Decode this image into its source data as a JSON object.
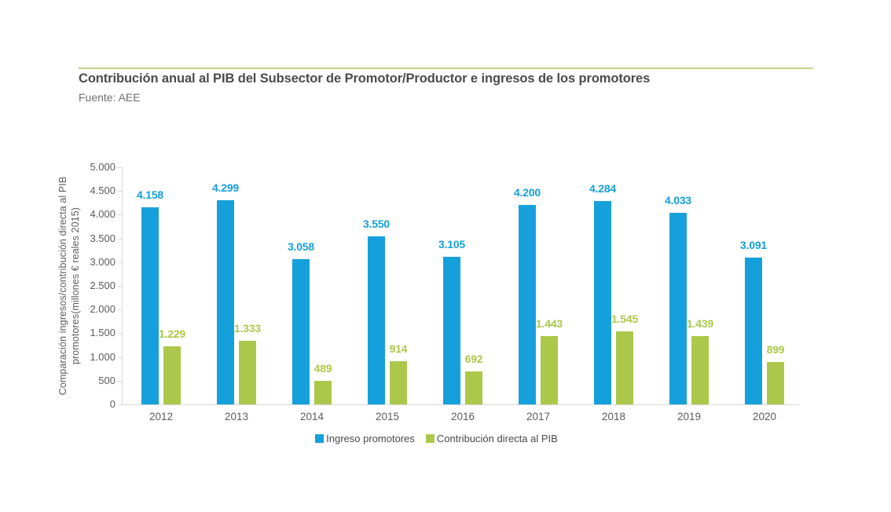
{
  "header": {
    "title": "Contribución anual al PIB del Subsector de Promotor/Productor e ingresos de los promotores",
    "source": "Fuente: AEE"
  },
  "chart_data": {
    "type": "bar",
    "title": "Contribución anual al PIB del Subsector de Promotor/Productor e ingresos de los promotores",
    "source": "Fuente: AEE",
    "categories": [
      "2012",
      "2013",
      "2014",
      "2015",
      "2016",
      "2017",
      "2018",
      "2019",
      "2020"
    ],
    "series": [
      {
        "name": "Ingreso promotores",
        "color": "#16A0DB",
        "values": [
          4158,
          4299,
          3058,
          3550,
          3105,
          4200,
          4284,
          4033,
          3091
        ],
        "labels": [
          "4.158",
          "4.299",
          "3.058",
          "3.550",
          "3.105",
          "4.200",
          "4.284",
          "4.033",
          "3.091"
        ]
      },
      {
        "name": "Contribución directa al PIB",
        "color": "#ACC84A",
        "values": [
          1229,
          1333,
          489,
          914,
          692,
          1443,
          1545,
          1439,
          899
        ],
        "labels": [
          "1.229",
          "1.333",
          "489",
          "914",
          "692",
          "1.443",
          "1.545",
          "1.439",
          "899"
        ]
      }
    ],
    "ylabel": "Comparación ingresos/contribución directa al PIB promotores(millones € reales 2015)",
    "ylabel_lines": [
      "Comparación ingresos/contribución directa al PIB",
      "promotores(millones € reales 2015)"
    ],
    "xlabel": "",
    "ylim": [
      0,
      5000
    ],
    "ytick_labels": [
      "0",
      "500",
      "1.000",
      "1.500",
      "2.000",
      "2.500",
      "3.000",
      "3.500",
      "4.000",
      "4.500",
      "5.000"
    ],
    "grid": false,
    "legend_position": "bottom"
  },
  "colors": {
    "accent_rule": "#BFD77E",
    "axis_line": "#D9D9DB",
    "title_text": "#4A4B4D",
    "source_text": "#6F7072",
    "tick_text": "#5B5C5E",
    "legend_text": "#48494B"
  }
}
